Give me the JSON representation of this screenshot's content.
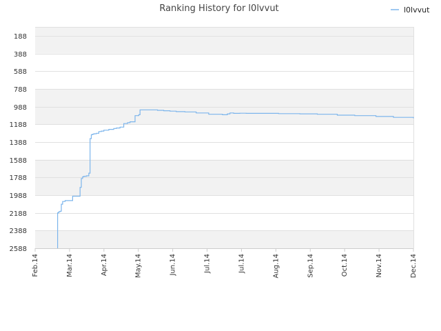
{
  "chart_data": {
    "type": "line",
    "title": "Ranking History for l0lvvut",
    "xlabel": "",
    "ylabel": "",
    "legend_position": "top-right",
    "grid": true,
    "y_inverted": true,
    "ylim": [
      2588,
      88
    ],
    "y_ticks": [
      "188",
      "388",
      "588",
      "788",
      "988",
      "1188",
      "1388",
      "1588",
      "1788",
      "1988",
      "2188",
      "2388",
      "2588"
    ],
    "x_ticks": [
      "Feb.14",
      "Mar.14",
      "Apr.14",
      "May.14",
      "Jun.14",
      "Jul.14",
      "Jul.14",
      "Aug.14",
      "Sep.14",
      "Oct.14",
      "Nov.14",
      "Dec.14"
    ],
    "colors": {
      "series": "#7cb5ec",
      "band": "#f2f2f2",
      "grid": "#e0e0e0"
    },
    "series": [
      {
        "name": "l0lvvut",
        "x": [
          "2014-02-19",
          "2014-02-19",
          "2014-02-20",
          "2014-02-21",
          "2014-02-22",
          "2014-02-23",
          "2014-02-25",
          "2014-02-27",
          "2014-03-03",
          "2014-03-04",
          "2014-03-09",
          "2014-03-10",
          "2014-03-11",
          "2014-03-12",
          "2014-03-14",
          "2014-03-16",
          "2014-03-17",
          "2014-03-17",
          "2014-03-18",
          "2014-03-19",
          "2014-03-20",
          "2014-03-22",
          "2014-03-24",
          "2014-03-26",
          "2014-03-28",
          "2014-04-01",
          "2014-04-05",
          "2014-04-07",
          "2014-04-10",
          "2014-04-13",
          "2014-04-16",
          "2014-04-18",
          "2014-04-22",
          "2014-04-25",
          "2014-04-26",
          "2014-04-29",
          "2014-05-05",
          "2014-05-10",
          "2014-05-15",
          "2014-05-20",
          "2014-05-25",
          "2014-06-01",
          "2014-06-10",
          "2014-06-20",
          "2014-07-01",
          "2014-07-05",
          "2014-07-07",
          "2014-07-10",
          "2014-07-15",
          "2014-07-20",
          "2014-08-01",
          "2014-08-15",
          "2014-09-01",
          "2014-09-15",
          "2014-10-01",
          "2014-10-15",
          "2014-11-01",
          "2014-11-15",
          "2014-12-01"
        ],
        "y": [
          2588,
          2188,
          2175,
          2170,
          2090,
          2060,
          2050,
          2050,
          2000,
          2000,
          1900,
          1800,
          1780,
          1775,
          1770,
          1740,
          1600,
          1350,
          1305,
          1300,
          1295,
          1290,
          1270,
          1265,
          1255,
          1245,
          1235,
          1230,
          1220,
          1180,
          1170,
          1160,
          1090,
          1080,
          1025,
          1025,
          1025,
          1030,
          1035,
          1040,
          1045,
          1048,
          1060,
          1075,
          1080,
          1070,
          1060,
          1065,
          1063,
          1065,
          1065,
          1068,
          1070,
          1075,
          1085,
          1090,
          1100,
          1110,
          1120
        ]
      }
    ]
  }
}
